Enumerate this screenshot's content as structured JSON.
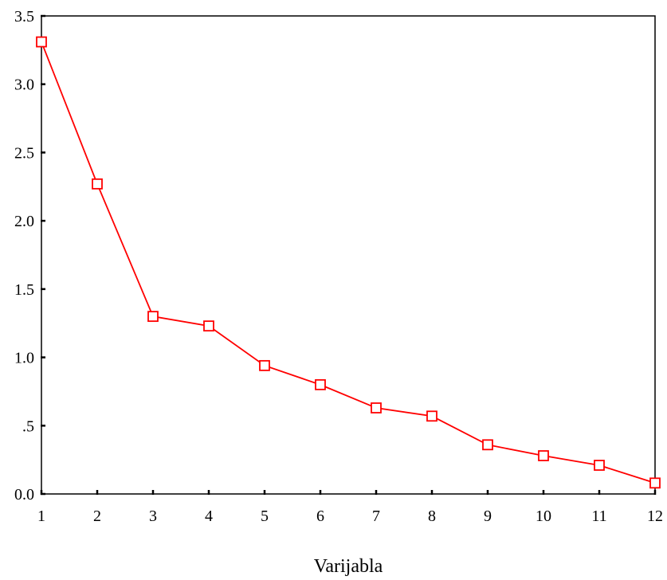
{
  "chart_data": {
    "type": "line",
    "title": "",
    "xlabel": "Varijabla",
    "ylabel": "",
    "x": [
      1,
      2,
      3,
      4,
      5,
      6,
      7,
      8,
      9,
      10,
      11,
      12
    ],
    "xlim": [
      1,
      12
    ],
    "ylim": [
      0,
      3.5
    ],
    "x_ticks": [
      "1",
      "2",
      "3",
      "4",
      "5",
      "6",
      "7",
      "8",
      "9",
      "10",
      "11",
      "12"
    ],
    "y_ticks": [
      {
        "value": 0,
        "label": "0.0"
      },
      {
        "value": 0.5,
        "label": ".5"
      },
      {
        "value": 1.0,
        "label": "1.0"
      },
      {
        "value": 1.5,
        "label": "1.5"
      },
      {
        "value": 2.0,
        "label": "2.0"
      },
      {
        "value": 2.5,
        "label": "2.5"
      },
      {
        "value": 3.0,
        "label": "3.0"
      },
      {
        "value": 3.5,
        "label": "3.5"
      }
    ],
    "grid": false,
    "legend": "none",
    "series": [
      {
        "values": [
          3.31,
          2.27,
          1.3,
          1.23,
          0.94,
          0.8,
          0.63,
          0.57,
          0.36,
          0.28,
          0.21,
          0.08
        ],
        "color": "#ff0000",
        "marker": "square-open"
      }
    ]
  }
}
